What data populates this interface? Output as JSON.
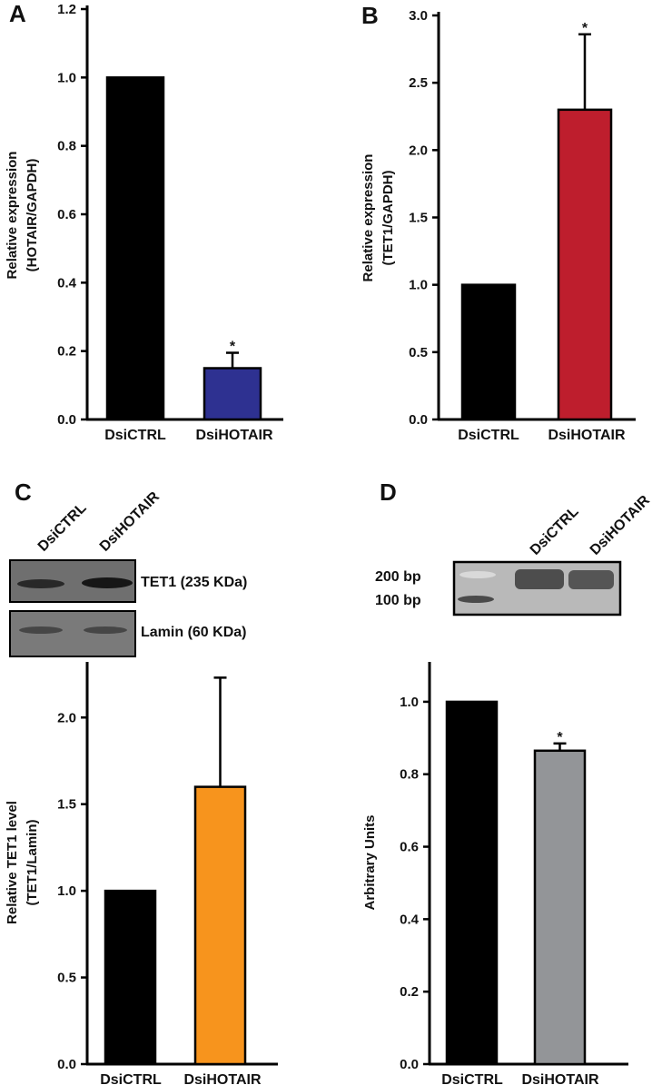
{
  "chart_data": [
    {
      "panel": "A",
      "type": "bar",
      "categories": [
        "DsiCTRL",
        "DsiHOTAIR"
      ],
      "values": [
        1.0,
        0.15
      ],
      "errors": [
        0,
        0.045
      ],
      "significance": [
        "",
        "*"
      ],
      "colors": [
        "#000000",
        "#2e3191"
      ],
      "ylabel": [
        "Relative expression",
        "(HOTAIR/GAPDH)"
      ],
      "ylim": [
        0,
        1.2
      ],
      "yticks": [
        "0.0",
        "0.2",
        "0.4",
        "0.6",
        "0.8",
        "1.0",
        "1.2"
      ]
    },
    {
      "panel": "B",
      "type": "bar",
      "categories": [
        "DsiCTRL",
        "DsiHOTAIR"
      ],
      "values": [
        1.0,
        2.3
      ],
      "errors": [
        0,
        0.56
      ],
      "significance": [
        "",
        "*"
      ],
      "colors": [
        "#000000",
        "#be1e2d"
      ],
      "ylabel": [
        "Relative expression",
        "(TET1/GAPDH)"
      ],
      "ylim": [
        0,
        3.0
      ],
      "yticks": [
        "0.0",
        "0.5",
        "1.0",
        "1.5",
        "2.0",
        "2.5",
        "3.0"
      ]
    },
    {
      "panel": "C",
      "type": "bar",
      "categories": [
        "DsiCTRL",
        "DsiHOTAIR"
      ],
      "values": [
        1.0,
        1.6
      ],
      "errors": [
        0,
        0.63
      ],
      "significance": [
        "",
        ""
      ],
      "colors": [
        "#000000",
        "#f7941d"
      ],
      "ylabel": [
        "Relative TET1 level",
        "(TET1/Lamin)"
      ],
      "ylim": [
        0,
        2.3
      ],
      "yticks": [
        "0.0",
        "0.5",
        "1.0",
        "1.5",
        "2.0"
      ],
      "blot_lanes": [
        "DsiCTRL",
        "DsiHOTAIR"
      ],
      "blot_labels": [
        "TET1 (235 KDa)",
        "Lamin (60 KDa)"
      ]
    },
    {
      "panel": "D",
      "type": "bar",
      "categories": [
        "DsiCTRL",
        "DsiHOTAIR"
      ],
      "values": [
        1.0,
        0.865
      ],
      "errors": [
        0,
        0.02
      ],
      "significance": [
        "",
        "*"
      ],
      "colors": [
        "#000000",
        "#939598"
      ],
      "ylabel": [
        "Arbitrary Units"
      ],
      "ylim": [
        0,
        1.1
      ],
      "yticks": [
        "0.0",
        "0.2",
        "0.4",
        "0.6",
        "0.8",
        "1.0"
      ],
      "gel_lanes": [
        "DsiCTRL",
        "DsiHOTAIR"
      ],
      "gel_markers": [
        "200 bp",
        "100 bp"
      ]
    }
  ]
}
